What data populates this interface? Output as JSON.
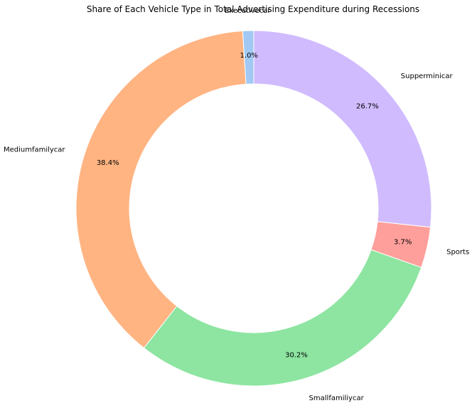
{
  "chart_data": {
    "type": "pie",
    "title": "Share of Each Vehicle Type in Total Advertising Expenditure during Recessions",
    "donut": true,
    "start_angle": 90,
    "direction": "counterclockwise",
    "slices": [
      {
        "label": "Executivecar",
        "value": 1.0,
        "pct_label": "1.0%",
        "color": "#a1c9f4"
      },
      {
        "label": "Mediumfamilycar",
        "value": 38.4,
        "pct_label": "38.4%",
        "color": "#ffb482"
      },
      {
        "label": "Smallfamiliycar",
        "value": 30.2,
        "pct_label": "30.2%",
        "color": "#8de5a1"
      },
      {
        "label": "Sports",
        "value": 3.7,
        "pct_label": "3.7%",
        "color": "#ff9f9b"
      },
      {
        "label": "Supperminicar",
        "value": 26.7,
        "pct_label": "26.7%",
        "color": "#d0bbff"
      }
    ]
  }
}
